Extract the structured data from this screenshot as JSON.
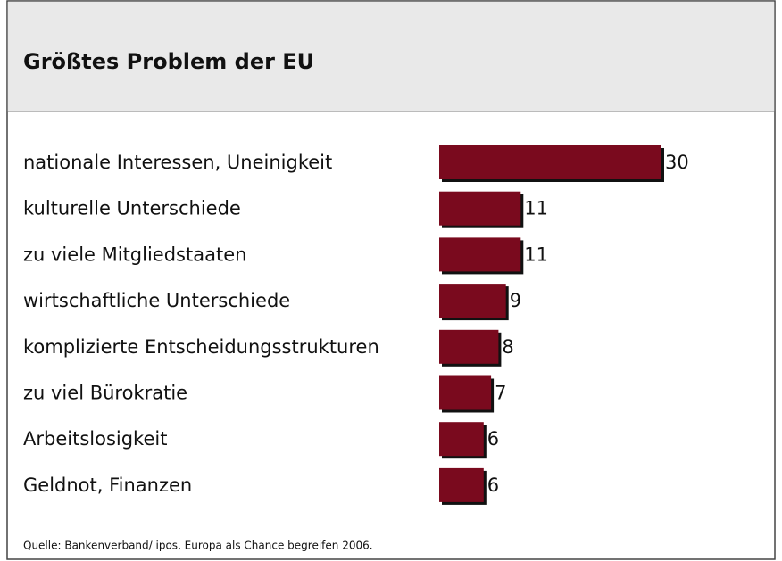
{
  "chart_data": {
    "type": "bar",
    "orientation": "horizontal",
    "title": "Größtes Problem der EU",
    "categories": [
      "nationale Interessen, Uneinigkeit",
      "kulturelle Unterschiede",
      "zu viele Mitgliedstaaten",
      "wirtschaftliche Unterschiede",
      "komplizierte Entscheidungsstrukturen",
      "zu viel Bürokratie",
      "Arbeitslosigkeit",
      "Geldnot, Finanzen"
    ],
    "values": [
      30,
      11,
      11,
      9,
      8,
      7,
      6,
      6
    ],
    "color": "#7a0a1e",
    "source": "Quelle: Bankenverband/ ipos, Europa als Chance begreifen 2006."
  }
}
